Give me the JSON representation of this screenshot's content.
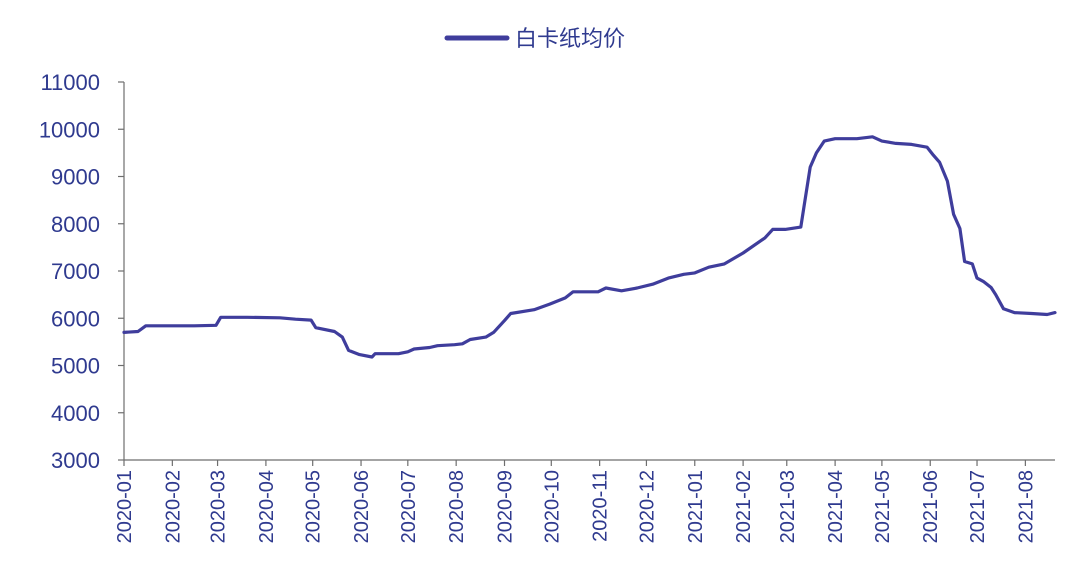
{
  "chart_data": {
    "type": "line",
    "legend": {
      "position": "top-center"
    },
    "grid": false,
    "ylim": [
      3000,
      11000
    ],
    "yticks": [
      "11000",
      "10000",
      "9000",
      "8000",
      "7000",
      "6000",
      "5000",
      "4000",
      "3000"
    ],
    "xlim": [
      "2020-01-01",
      "2021-08-20"
    ],
    "xticks": [
      "2020-01",
      "2020-02",
      "2020-03",
      "2020-04",
      "2020-05",
      "2020-06",
      "2020-07",
      "2020-08",
      "2020-09",
      "2020-10",
      "2020-11",
      "2020-12",
      "2021-01",
      "2021-02",
      "2021-03",
      "2021-04",
      "2021-05",
      "2021-06",
      "2021-07",
      "2021-08"
    ],
    "series": [
      {
        "name": "白卡纸均价",
        "color": "#3f3d9c",
        "points": [
          [
            "2020-01-01",
            5700
          ],
          [
            "2020-01-10",
            5720
          ],
          [
            "2020-01-15",
            5840
          ],
          [
            "2020-01-31",
            5840
          ],
          [
            "2020-02-15",
            5840
          ],
          [
            "2020-02-29",
            5850
          ],
          [
            "2020-03-03",
            6020
          ],
          [
            "2020-03-20",
            6020
          ],
          [
            "2020-04-10",
            6010
          ],
          [
            "2020-04-20",
            5980
          ],
          [
            "2020-04-30",
            5960
          ],
          [
            "2020-05-03",
            5800
          ],
          [
            "2020-05-15",
            5720
          ],
          [
            "2020-05-20",
            5600
          ],
          [
            "2020-05-24",
            5320
          ],
          [
            "2020-05-31",
            5230
          ],
          [
            "2020-06-08",
            5180
          ],
          [
            "2020-06-10",
            5250
          ],
          [
            "2020-06-25",
            5250
          ],
          [
            "2020-07-01",
            5290
          ],
          [
            "2020-07-05",
            5350
          ],
          [
            "2020-07-15",
            5380
          ],
          [
            "2020-07-20",
            5420
          ],
          [
            "2020-07-31",
            5440
          ],
          [
            "2020-08-05",
            5460
          ],
          [
            "2020-08-10",
            5550
          ],
          [
            "2020-08-20",
            5600
          ],
          [
            "2020-08-25",
            5700
          ],
          [
            "2020-09-01",
            5950
          ],
          [
            "2020-09-05",
            6100
          ],
          [
            "2020-09-20",
            6180
          ],
          [
            "2020-09-30",
            6300
          ],
          [
            "2020-10-10",
            6430
          ],
          [
            "2020-10-15",
            6560
          ],
          [
            "2020-10-31",
            6560
          ],
          [
            "2020-11-05",
            6640
          ],
          [
            "2020-11-15",
            6580
          ],
          [
            "2020-11-25",
            6640
          ],
          [
            "2020-12-05",
            6720
          ],
          [
            "2020-12-15",
            6850
          ],
          [
            "2020-12-25",
            6930
          ],
          [
            "2021-01-01",
            6960
          ],
          [
            "2021-01-10",
            7080
          ],
          [
            "2021-01-20",
            7150
          ],
          [
            "2021-02-01",
            7380
          ],
          [
            "2021-02-15",
            7700
          ],
          [
            "2021-02-20",
            7880
          ],
          [
            "2021-02-28",
            7880
          ],
          [
            "2021-03-10",
            7930
          ],
          [
            "2021-03-12",
            8350
          ],
          [
            "2021-03-16",
            9200
          ],
          [
            "2021-03-20",
            9500
          ],
          [
            "2021-03-25",
            9750
          ],
          [
            "2021-04-01",
            9800
          ],
          [
            "2021-04-15",
            9800
          ],
          [
            "2021-04-25",
            9840
          ],
          [
            "2021-05-01",
            9750
          ],
          [
            "2021-05-10",
            9700
          ],
          [
            "2021-05-20",
            9680
          ],
          [
            "2021-05-30",
            9620
          ],
          [
            "2021-06-03",
            9450
          ],
          [
            "2021-06-07",
            9300
          ],
          [
            "2021-06-12",
            8900
          ],
          [
            "2021-06-16",
            8200
          ],
          [
            "2021-06-20",
            7900
          ],
          [
            "2021-06-23",
            7200
          ],
          [
            "2021-06-28",
            7150
          ],
          [
            "2021-07-01",
            6850
          ],
          [
            "2021-07-05",
            6780
          ],
          [
            "2021-07-10",
            6650
          ],
          [
            "2021-07-13",
            6500
          ],
          [
            "2021-07-18",
            6200
          ],
          [
            "2021-07-25",
            6120
          ],
          [
            "2021-08-05",
            6100
          ],
          [
            "2021-08-15",
            6080
          ],
          [
            "2021-08-20",
            6120
          ]
        ]
      }
    ]
  }
}
